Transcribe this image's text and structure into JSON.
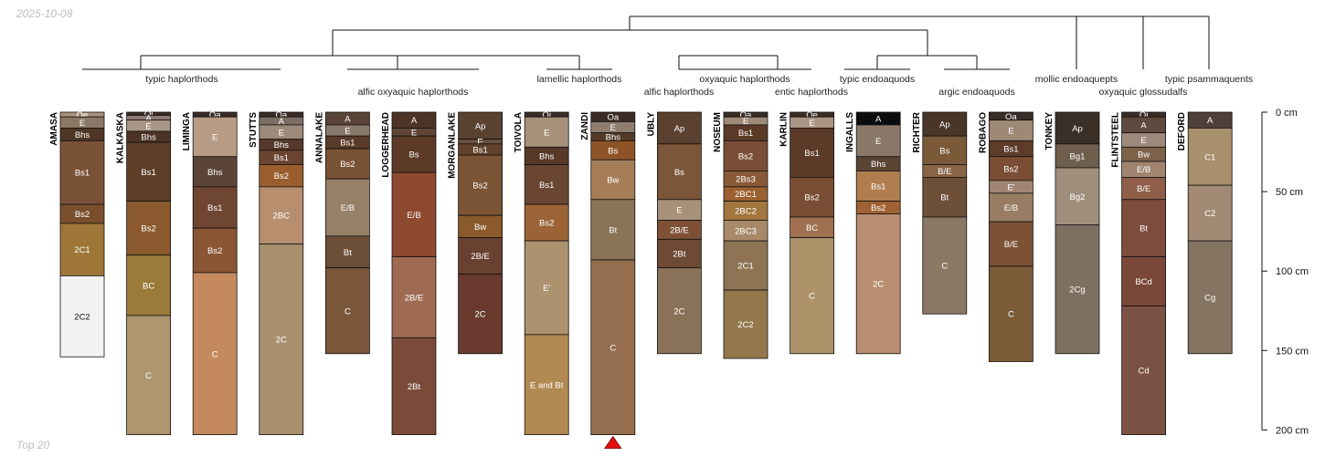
{
  "meta": {
    "date": "2025-10-08",
    "caption": "Top 20"
  },
  "colors": {
    "line": "#111111",
    "warning_marker": "#e11010"
  },
  "chart_data": {
    "type": "soil-profile-sketch",
    "depth_unit": "cm",
    "depth_range": [
      0,
      200
    ],
    "depth_ticks": [
      {
        "depth": 0,
        "label": "0 cm"
      },
      {
        "depth": 50,
        "label": "50 cm"
      },
      {
        "depth": 100,
        "label": "100 cm"
      },
      {
        "depth": 150,
        "label": "150 cm"
      },
      {
        "depth": 200,
        "label": "200 cm"
      }
    ],
    "taxonomy_labels": [
      {
        "id": "t1",
        "text": "typic haplorthods"
      },
      {
        "id": "t2",
        "text": "alfic oxyaquic haplorthods"
      },
      {
        "id": "t3",
        "text": "lamellic haplorthods"
      },
      {
        "id": "t4",
        "text": "alfic haplorthods"
      },
      {
        "id": "t5",
        "text": "oxyaquic haplorthods"
      },
      {
        "id": "t6",
        "text": "entic haplorthods"
      },
      {
        "id": "t7",
        "text": "typic endoaquods"
      },
      {
        "id": "t8",
        "text": "argic endoaquods"
      },
      {
        "id": "t9",
        "text": "mollic endoaquepts"
      },
      {
        "id": "t10",
        "text": "oxyaquic glossudalfs"
      },
      {
        "id": "t11",
        "text": "typic psammaquents"
      }
    ],
    "profiles": [
      {
        "name": "AMASA",
        "truncated": false,
        "horizons": [
          {
            "name": "Oe",
            "top": 0,
            "bottom": 3,
            "color": "#a9917b"
          },
          {
            "name": "E",
            "top": 3,
            "bottom": 10,
            "color": "#8a7866"
          },
          {
            "name": "Bhs",
            "top": 10,
            "bottom": 18,
            "color": "#4f3624"
          },
          {
            "name": "Bs1",
            "top": 18,
            "bottom": 58,
            "color": "#7a5238"
          },
          {
            "name": "Bs2",
            "top": 58,
            "bottom": 70,
            "color": "#7a4f2e"
          },
          {
            "name": "2C1",
            "top": 70,
            "bottom": 103,
            "color": "#9e7638"
          },
          {
            "name": "2C2",
            "top": 103,
            "bottom": 154,
            "color": "#f2f2f2"
          }
        ]
      },
      {
        "name": "KALKASKA",
        "truncated": false,
        "horizons": [
          {
            "name": "Oi",
            "top": 0,
            "bottom": 2,
            "color": "#3a2e26"
          },
          {
            "name": "A",
            "top": 2,
            "bottom": 5,
            "color": "#8c7a70"
          },
          {
            "name": "E",
            "top": 5,
            "bottom": 12,
            "color": "#a99686"
          },
          {
            "name": "Bhs",
            "top": 12,
            "bottom": 19,
            "color": "#4c3323"
          },
          {
            "name": "Bs1",
            "top": 19,
            "bottom": 56,
            "color": "#5e3e26"
          },
          {
            "name": "Bs2",
            "top": 56,
            "bottom": 90,
            "color": "#8a5a2e"
          },
          {
            "name": "BC",
            "top": 90,
            "bottom": 128,
            "color": "#9b7a3a"
          },
          {
            "name": "C",
            "top": 128,
            "bottom": 203,
            "color": "#ad9670"
          }
        ]
      },
      {
        "name": "LIMINGA",
        "truncated": false,
        "horizons": [
          {
            "name": "Oa",
            "top": 0,
            "bottom": 3,
            "color": "#3a2c26"
          },
          {
            "name": "E",
            "top": 3,
            "bottom": 28,
            "color": "#b99c86"
          },
          {
            "name": "Bhs",
            "top": 28,
            "bottom": 47,
            "color": "#5c4538"
          },
          {
            "name": "Bs1",
            "top": 47,
            "bottom": 73,
            "color": "#6e4632"
          },
          {
            "name": "Bs2",
            "top": 73,
            "bottom": 101,
            "color": "#8a5634"
          },
          {
            "name": "C",
            "top": 101,
            "bottom": 203,
            "color": "#c48a5e"
          }
        ]
      },
      {
        "name": "STUTTS",
        "truncated": false,
        "horizons": [
          {
            "name": "Oa",
            "top": 0,
            "bottom": 3,
            "color": "#3a2c26"
          },
          {
            "name": "A",
            "top": 3,
            "bottom": 8,
            "color": "#7d6e64"
          },
          {
            "name": "E",
            "top": 8,
            "bottom": 17,
            "color": "#9d8a7a"
          },
          {
            "name": "Bhs",
            "top": 17,
            "bottom": 24,
            "color": "#56392a"
          },
          {
            "name": "Bs1",
            "top": 24,
            "bottom": 33,
            "color": "#6a4430"
          },
          {
            "name": "Bs2",
            "top": 33,
            "bottom": 47,
            "color": "#9a5e2e"
          },
          {
            "name": "2BC",
            "top": 47,
            "bottom": 83,
            "color": "#b78e6e"
          },
          {
            "name": "2C",
            "top": 83,
            "bottom": 203,
            "color": "#a8906e"
          }
        ]
      },
      {
        "name": "ANNALAKE",
        "truncated": false,
        "horizons": [
          {
            "name": "A",
            "top": 0,
            "bottom": 8,
            "color": "#5a4538"
          },
          {
            "name": "E",
            "top": 8,
            "bottom": 15,
            "color": "#8a7a6c"
          },
          {
            "name": "Bs1",
            "top": 15,
            "bottom": 23,
            "color": "#5a3a28"
          },
          {
            "name": "Bs2",
            "top": 23,
            "bottom": 42,
            "color": "#7a5234"
          },
          {
            "name": "E/B",
            "top": 42,
            "bottom": 78,
            "color": "#978068"
          },
          {
            "name": "Bt",
            "top": 78,
            "bottom": 98,
            "color": "#6d4e36"
          },
          {
            "name": "C",
            "top": 98,
            "bottom": 152,
            "color": "#7a573a"
          }
        ]
      },
      {
        "name": "LOGGERHEAD",
        "truncated": false,
        "horizons": [
          {
            "name": "A",
            "top": 0,
            "bottom": 10,
            "color": "#4e3426"
          },
          {
            "name": "E",
            "top": 10,
            "bottom": 15,
            "color": "#5e4536"
          },
          {
            "name": "Bs",
            "top": 15,
            "bottom": 38,
            "color": "#5c3a26"
          },
          {
            "name": "E/B",
            "top": 38,
            "bottom": 91,
            "color": "#8e4a30"
          },
          {
            "name": "2B/E",
            "top": 91,
            "bottom": 142,
            "color": "#9e6a52"
          },
          {
            "name": "2Bt",
            "top": 142,
            "bottom": 203,
            "color": "#7c4a38"
          }
        ]
      },
      {
        "name": "MORGANLAKE",
        "truncated": false,
        "horizons": [
          {
            "name": "Ap",
            "top": 0,
            "bottom": 17,
            "color": "#5a4230"
          },
          {
            "name": "E",
            "top": 17,
            "bottom": 20,
            "color": "#6a5040"
          },
          {
            "name": "Bs1",
            "top": 20,
            "bottom": 27,
            "color": "#62412c"
          },
          {
            "name": "Bs2",
            "top": 27,
            "bottom": 65,
            "color": "#7a5434"
          },
          {
            "name": "Bw",
            "top": 65,
            "bottom": 79,
            "color": "#8a5a2a"
          },
          {
            "name": "2B/E",
            "top": 79,
            "bottom": 102,
            "color": "#6a4030"
          },
          {
            "name": "2C",
            "top": 102,
            "bottom": 152,
            "color": "#6a3a2e"
          }
        ]
      },
      {
        "name": "TOIVOLA",
        "truncated": false,
        "horizons": [
          {
            "name": "Oi",
            "top": 0,
            "bottom": 3,
            "color": "#3a2e26"
          },
          {
            "name": "E",
            "top": 3,
            "bottom": 22,
            "color": "#a8917a"
          },
          {
            "name": "Bhs",
            "top": 22,
            "bottom": 33,
            "color": "#57392a"
          },
          {
            "name": "Bs1",
            "top": 33,
            "bottom": 58,
            "color": "#6a4632"
          },
          {
            "name": "Bs2",
            "top": 58,
            "bottom": 81,
            "color": "#9a6436"
          },
          {
            "name": "E'",
            "top": 81,
            "bottom": 140,
            "color": "#ad9270"
          },
          {
            "name": "E and Bt",
            "top": 140,
            "bottom": 203,
            "color": "#b08a52"
          }
        ]
      },
      {
        "name": "ZANDI",
        "truncated": true,
        "horizons": [
          {
            "name": "Oa",
            "top": 0,
            "bottom": 6,
            "color": "#3a2c26"
          },
          {
            "name": "E",
            "top": 6,
            "bottom": 13,
            "color": "#8f7e70"
          },
          {
            "name": "Bhs",
            "top": 13,
            "bottom": 18,
            "color": "#553a28"
          },
          {
            "name": "Bs",
            "top": 18,
            "bottom": 30,
            "color": "#8e5428"
          },
          {
            "name": "Bw",
            "top": 30,
            "bottom": 55,
            "color": "#a57e58"
          },
          {
            "name": "Bt",
            "top": 55,
            "bottom": 93,
            "color": "#8a7356"
          },
          {
            "name": "C",
            "top": 93,
            "bottom": 203,
            "color": "#946e4e"
          }
        ]
      },
      {
        "name": "UBLY",
        "truncated": false,
        "horizons": [
          {
            "name": "Ap",
            "top": 0,
            "bottom": 20,
            "color": "#5c4030"
          },
          {
            "name": "Bs",
            "top": 20,
            "bottom": 55,
            "color": "#7c5638"
          },
          {
            "name": "E",
            "top": 55,
            "bottom": 68,
            "color": "#a8917a"
          },
          {
            "name": "2B/E",
            "top": 68,
            "bottom": 80,
            "color": "#7e5036"
          },
          {
            "name": "2Bt",
            "top": 80,
            "bottom": 98,
            "color": "#6e4a34"
          },
          {
            "name": "2C",
            "top": 98,
            "bottom": 152,
            "color": "#8a7258"
          }
        ]
      },
      {
        "name": "NOSEUM",
        "truncated": false,
        "horizons": [
          {
            "name": "Oa",
            "top": 0,
            "bottom": 3,
            "color": "#3a2e26"
          },
          {
            "name": "E",
            "top": 3,
            "bottom": 8,
            "color": "#a28a78"
          },
          {
            "name": "Bs1",
            "top": 8,
            "bottom": 18,
            "color": "#5c3a28"
          },
          {
            "name": "Bs2",
            "top": 18,
            "bottom": 37,
            "color": "#7a4e36"
          },
          {
            "name": "2Bs3",
            "top": 37,
            "bottom": 47,
            "color": "#8a5a38"
          },
          {
            "name": "2BC1",
            "top": 47,
            "bottom": 56,
            "color": "#9a6030"
          },
          {
            "name": "2BC2",
            "top": 56,
            "bottom": 68,
            "color": "#a2763e"
          },
          {
            "name": "2BC3",
            "top": 68,
            "bottom": 81,
            "color": "#a88a6a"
          },
          {
            "name": "2C1",
            "top": 81,
            "bottom": 112,
            "color": "#8e7454"
          },
          {
            "name": "2C2",
            "top": 112,
            "bottom": 155,
            "color": "#95774c"
          }
        ]
      },
      {
        "name": "KARLIN",
        "truncated": false,
        "horizons": [
          {
            "name": "Oe",
            "top": 0,
            "bottom": 3,
            "color": "#3a2e26"
          },
          {
            "name": "E",
            "top": 3,
            "bottom": 10,
            "color": "#ab9684"
          },
          {
            "name": "Bs1",
            "top": 10,
            "bottom": 41,
            "color": "#5c3a28"
          },
          {
            "name": "Bs2",
            "top": 41,
            "bottom": 66,
            "color": "#7a4e34"
          },
          {
            "name": "BC",
            "top": 66,
            "bottom": 79,
            "color": "#a07050"
          },
          {
            "name": "C",
            "top": 79,
            "bottom": 152,
            "color": "#ad926a"
          }
        ]
      },
      {
        "name": "INGALLS",
        "truncated": false,
        "horizons": [
          {
            "name": "A",
            "top": 0,
            "bottom": 8,
            "color": "#0c0c0c"
          },
          {
            "name": "E",
            "top": 8,
            "bottom": 28,
            "color": "#8a7868"
          },
          {
            "name": "Bhs",
            "top": 28,
            "bottom": 37,
            "color": "#5a4434"
          },
          {
            "name": "Bs1",
            "top": 37,
            "bottom": 56,
            "color": "#b07e4e"
          },
          {
            "name": "Bs2",
            "top": 56,
            "bottom": 64,
            "color": "#a06234"
          },
          {
            "name": "2C",
            "top": 64,
            "bottom": 152,
            "color": "#ba8e70"
          }
        ]
      },
      {
        "name": "RICHTER",
        "truncated": false,
        "horizons": [
          {
            "name": "Ap",
            "top": 0,
            "bottom": 15,
            "color": "#4a3628"
          },
          {
            "name": "Bs",
            "top": 15,
            "bottom": 33,
            "color": "#7a5a38"
          },
          {
            "name": "B/E",
            "top": 33,
            "bottom": 41,
            "color": "#8a6446"
          },
          {
            "name": "Bt",
            "top": 41,
            "bottom": 66,
            "color": "#6d4e36"
          },
          {
            "name": "C",
            "top": 66,
            "bottom": 127,
            "color": "#8a7764"
          }
        ]
      },
      {
        "name": "ROBAGO",
        "truncated": false,
        "horizons": [
          {
            "name": "Oa",
            "top": 0,
            "bottom": 5,
            "color": "#3a2c26"
          },
          {
            "name": "E",
            "top": 5,
            "bottom": 18,
            "color": "#9e8876"
          },
          {
            "name": "Bs1",
            "top": 18,
            "bottom": 28,
            "color": "#5e3c2a"
          },
          {
            "name": "Bs2",
            "top": 28,
            "bottom": 43,
            "color": "#7a4e34"
          },
          {
            "name": "E'",
            "top": 43,
            "bottom": 51,
            "color": "#a08672"
          },
          {
            "name": "E/B",
            "top": 51,
            "bottom": 69,
            "color": "#987c64"
          },
          {
            "name": "B/E",
            "top": 69,
            "bottom": 97,
            "color": "#7c5236"
          },
          {
            "name": "C",
            "top": 97,
            "bottom": 157,
            "color": "#7c5c38"
          }
        ]
      },
      {
        "name": "TONKEY",
        "truncated": false,
        "horizons": [
          {
            "name": "Ap",
            "top": 0,
            "bottom": 20,
            "color": "#3a3028"
          },
          {
            "name": "Bg1",
            "top": 20,
            "bottom": 35,
            "color": "#6f5e4c"
          },
          {
            "name": "Bg2",
            "top": 35,
            "bottom": 71,
            "color": "#a08e7c"
          },
          {
            "name": "2Cg",
            "top": 71,
            "bottom": 152,
            "color": "#7e7060"
          }
        ]
      },
      {
        "name": "FLINTSTEEL",
        "truncated": false,
        "horizons": [
          {
            "name": "Oi",
            "top": 0,
            "bottom": 3,
            "color": "#3a2e26"
          },
          {
            "name": "A",
            "top": 3,
            "bottom": 13,
            "color": "#5e4a3e"
          },
          {
            "name": "E",
            "top": 13,
            "bottom": 22,
            "color": "#9e8a7c"
          },
          {
            "name": "Bw",
            "top": 22,
            "bottom": 31,
            "color": "#7c6248"
          },
          {
            "name": "E/B",
            "top": 31,
            "bottom": 41,
            "color": "#a08470"
          },
          {
            "name": "B/E",
            "top": 41,
            "bottom": 55,
            "color": "#8e5e48"
          },
          {
            "name": "Bt",
            "top": 55,
            "bottom": 91,
            "color": "#7e4c3a"
          },
          {
            "name": "BCd",
            "top": 91,
            "bottom": 122,
            "color": "#7a4838"
          },
          {
            "name": "Cd",
            "top": 122,
            "bottom": 203,
            "color": "#7c5244"
          }
        ]
      },
      {
        "name": "DEFORD",
        "truncated": false,
        "horizons": [
          {
            "name": "A",
            "top": 0,
            "bottom": 10,
            "color": "#4e4038"
          },
          {
            "name": "C1",
            "top": 10,
            "bottom": 46,
            "color": "#a8906c"
          },
          {
            "name": "C2",
            "top": 46,
            "bottom": 81,
            "color": "#a38a74"
          },
          {
            "name": "Cg",
            "top": 81,
            "bottom": 152,
            "color": "#857462"
          }
        ]
      }
    ]
  }
}
